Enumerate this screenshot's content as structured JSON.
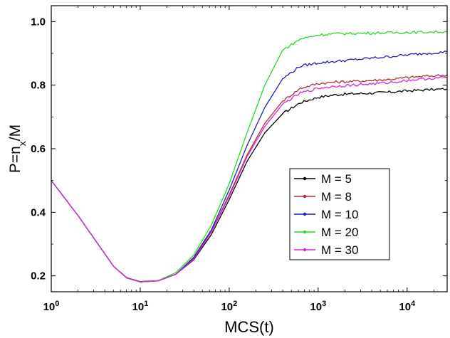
{
  "chart_data": {
    "type": "line",
    "title": "",
    "xlabel": "MCS(t)",
    "ylabel_main": "P=n",
    "ylabel_sub": "x",
    "ylabel_tail": "/M",
    "xscale": "log",
    "xlim_log10": [
      0,
      4.45
    ],
    "ylim": [
      0.15,
      1.05
    ],
    "x_ticks": [
      {
        "base": "10",
        "exp": "0",
        "log10": 0
      },
      {
        "base": "10",
        "exp": "1",
        "log10": 1
      },
      {
        "base": "10",
        "exp": "2",
        "log10": 2
      },
      {
        "base": "10",
        "exp": "3",
        "log10": 3
      },
      {
        "base": "10",
        "exp": "4",
        "log10": 4
      }
    ],
    "y_ticks": [
      {
        "label": "0.2",
        "value": 0.2
      },
      {
        "label": "0.4",
        "value": 0.4
      },
      {
        "label": "0.6",
        "value": 0.6
      },
      {
        "label": "0.8",
        "value": 0.8
      },
      {
        "label": "1.0",
        "value": 1.0
      }
    ],
    "legend_position": "center-right",
    "series": [
      {
        "name": "M = 5",
        "color": "#000000",
        "points": [
          [
            0,
            0.5
          ],
          [
            0.3,
            0.39
          ],
          [
            0.5,
            0.31
          ],
          [
            0.7,
            0.23
          ],
          [
            0.85,
            0.194
          ],
          [
            1.0,
            0.182
          ],
          [
            1.2,
            0.185
          ],
          [
            1.4,
            0.205
          ],
          [
            1.6,
            0.25
          ],
          [
            1.8,
            0.33
          ],
          [
            2.0,
            0.44
          ],
          [
            2.2,
            0.56
          ],
          [
            2.4,
            0.65
          ],
          [
            2.6,
            0.71
          ],
          [
            2.8,
            0.745
          ],
          [
            3.0,
            0.762
          ],
          [
            3.2,
            0.77
          ],
          [
            3.4,
            0.773
          ],
          [
            3.6,
            0.775
          ],
          [
            3.8,
            0.778
          ],
          [
            4.0,
            0.782
          ],
          [
            4.2,
            0.785
          ],
          [
            4.45,
            0.788
          ]
        ]
      },
      {
        "name": "M = 8",
        "color": "#b03030",
        "points": [
          [
            0,
            0.5
          ],
          [
            0.3,
            0.39
          ],
          [
            0.5,
            0.31
          ],
          [
            0.7,
            0.23
          ],
          [
            0.85,
            0.193
          ],
          [
            1.0,
            0.181
          ],
          [
            1.2,
            0.184
          ],
          [
            1.4,
            0.205
          ],
          [
            1.6,
            0.255
          ],
          [
            1.8,
            0.34
          ],
          [
            2.0,
            0.455
          ],
          [
            2.2,
            0.58
          ],
          [
            2.4,
            0.68
          ],
          [
            2.6,
            0.75
          ],
          [
            2.8,
            0.79
          ],
          [
            3.0,
            0.805
          ],
          [
            3.2,
            0.81
          ],
          [
            3.4,
            0.812
          ],
          [
            3.6,
            0.815
          ],
          [
            3.8,
            0.818
          ],
          [
            4.0,
            0.824
          ],
          [
            4.2,
            0.828
          ],
          [
            4.45,
            0.832
          ]
        ]
      },
      {
        "name": "M = 10",
        "color": "#2020b0",
        "points": [
          [
            0,
            0.5
          ],
          [
            0.3,
            0.39
          ],
          [
            0.5,
            0.31
          ],
          [
            0.7,
            0.23
          ],
          [
            0.85,
            0.193
          ],
          [
            1.0,
            0.181
          ],
          [
            1.2,
            0.184
          ],
          [
            1.4,
            0.205
          ],
          [
            1.6,
            0.258
          ],
          [
            1.8,
            0.345
          ],
          [
            2.0,
            0.47
          ],
          [
            2.2,
            0.61
          ],
          [
            2.4,
            0.73
          ],
          [
            2.6,
            0.82
          ],
          [
            2.8,
            0.86
          ],
          [
            3.0,
            0.87
          ],
          [
            3.2,
            0.875
          ],
          [
            3.4,
            0.88
          ],
          [
            3.6,
            0.885
          ],
          [
            3.8,
            0.89
          ],
          [
            4.0,
            0.895
          ],
          [
            4.2,
            0.9
          ],
          [
            4.45,
            0.905
          ]
        ]
      },
      {
        "name": "M = 20",
        "color": "#22dd22",
        "points": [
          [
            0,
            0.5
          ],
          [
            0.3,
            0.39
          ],
          [
            0.5,
            0.31
          ],
          [
            0.7,
            0.23
          ],
          [
            0.85,
            0.193
          ],
          [
            1.0,
            0.181
          ],
          [
            1.2,
            0.185
          ],
          [
            1.4,
            0.21
          ],
          [
            1.6,
            0.265
          ],
          [
            1.8,
            0.36
          ],
          [
            2.0,
            0.49
          ],
          [
            2.2,
            0.65
          ],
          [
            2.4,
            0.8
          ],
          [
            2.6,
            0.91
          ],
          [
            2.8,
            0.945
          ],
          [
            3.0,
            0.958
          ],
          [
            3.2,
            0.962
          ],
          [
            3.4,
            0.963
          ],
          [
            3.6,
            0.964
          ],
          [
            3.8,
            0.965
          ],
          [
            4.0,
            0.966
          ],
          [
            4.2,
            0.967
          ],
          [
            4.45,
            0.968
          ]
        ]
      },
      {
        "name": "M = 30",
        "color": "#dd22dd",
        "points": [
          [
            0,
            0.5
          ],
          [
            0.3,
            0.39
          ],
          [
            0.5,
            0.31
          ],
          [
            0.7,
            0.23
          ],
          [
            0.85,
            0.193
          ],
          [
            1.0,
            0.181
          ],
          [
            1.2,
            0.184
          ],
          [
            1.4,
            0.205
          ],
          [
            1.6,
            0.252
          ],
          [
            1.8,
            0.338
          ],
          [
            2.0,
            0.45
          ],
          [
            2.2,
            0.575
          ],
          [
            2.4,
            0.67
          ],
          [
            2.6,
            0.74
          ],
          [
            2.8,
            0.775
          ],
          [
            3.0,
            0.79
          ],
          [
            3.2,
            0.797
          ],
          [
            3.4,
            0.8
          ],
          [
            3.6,
            0.804
          ],
          [
            3.8,
            0.808
          ],
          [
            4.0,
            0.815
          ],
          [
            4.2,
            0.82
          ],
          [
            4.45,
            0.825
          ]
        ]
      }
    ]
  }
}
